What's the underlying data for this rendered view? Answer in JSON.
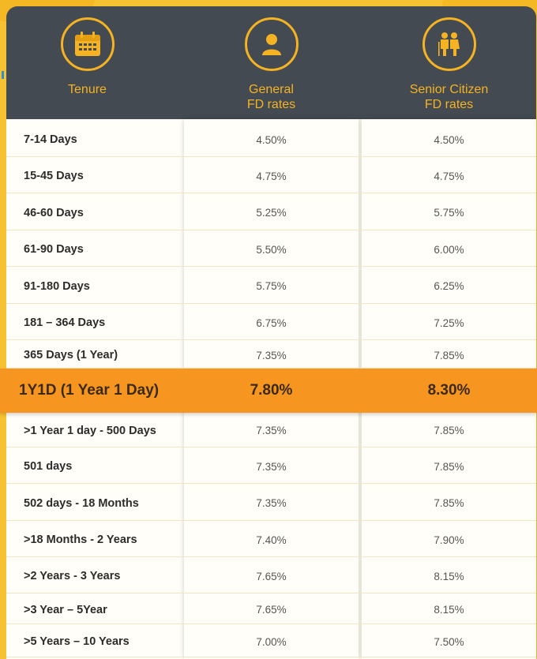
{
  "header": {
    "columns": [
      {
        "label": "Tenure",
        "icon": "calendar-icon"
      },
      {
        "label": "General\nFD rates",
        "icon": "user-icon"
      },
      {
        "label": "Senior Citizen\nFD rates",
        "icon": "senior-couple-icon"
      }
    ]
  },
  "colors": {
    "header_bg": "#434a51",
    "accent": "#f5b323",
    "highlight": "#f79521",
    "background": "#f6c232"
  },
  "rows_top": [
    {
      "tenure": "7-14 Days",
      "general": "4.50%",
      "senior": "4.50%"
    },
    {
      "tenure": "15-45 Days",
      "general": "4.75%",
      "senior": "4.75%"
    },
    {
      "tenure": "46-60 Days",
      "general": "5.25%",
      "senior": "5.75%"
    },
    {
      "tenure": "61-90 Days",
      "general": "5.50%",
      "senior": "6.00%"
    },
    {
      "tenure": "91-180 Days",
      "general": "5.75%",
      "senior": "6.25%"
    },
    {
      "tenure": "181 – 364 Days",
      "general": "6.75%",
      "senior": "7.25%"
    },
    {
      "tenure": "365 Days (1 Year)",
      "general": "7.35%",
      "senior": "7.85%"
    }
  ],
  "highlight": {
    "tenure": "1Y1D (1 Year 1 Day)",
    "general": "7.80%",
    "senior": "8.30%"
  },
  "rows_bottom": [
    {
      "tenure": ">1 Year 1 day - 500 Days",
      "general": "7.35%",
      "senior": "7.85%"
    },
    {
      "tenure": "501 days",
      "general": "7.35%",
      "senior": "7.85%"
    },
    {
      "tenure": "502 days - 18 Months",
      "general": "7.35%",
      "senior": "7.85%"
    },
    {
      "tenure": ">18 Months - 2 Years",
      "general": "7.40%",
      "senior": "7.90%"
    },
    {
      "tenure": ">2 Years - 3 Years",
      "general": "7.65%",
      "senior": "8.15%"
    },
    {
      "tenure": ">3 Year – 5Year",
      "general": "7.65%",
      "senior": "8.15%"
    },
    {
      "tenure": ">5 Years – 10 Years",
      "general": "7.00%",
      "senior": "7.50%"
    }
  ]
}
